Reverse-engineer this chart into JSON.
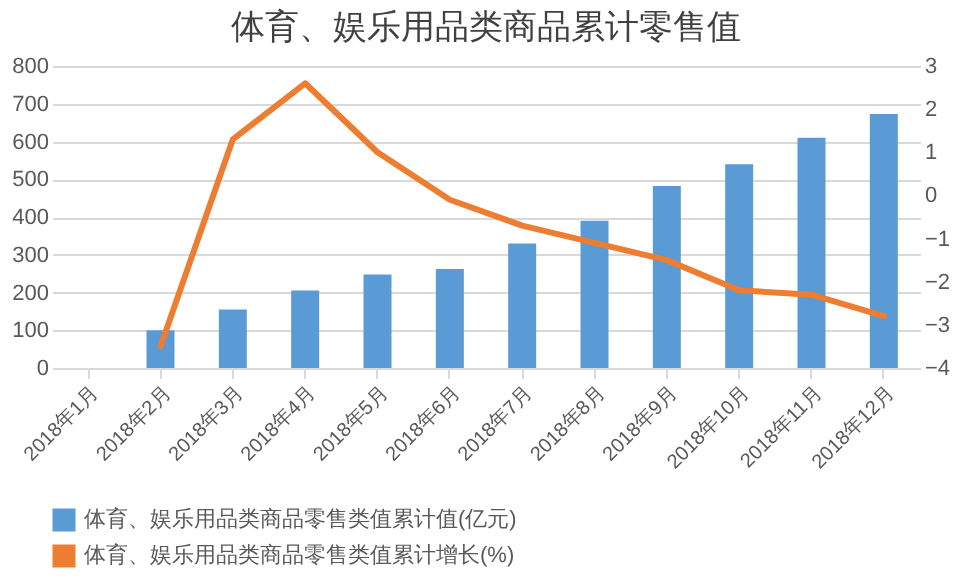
{
  "chart_data": {
    "type": "bar",
    "title": "体育、娱乐用品类商品累计零售值",
    "categories": [
      "2018年1月",
      "2018年2月",
      "2018年3月",
      "2018年4月",
      "2018年5月",
      "2018年6月",
      "2018年7月",
      "2018年8月",
      "2018年9月",
      "2018年10月",
      "2018年11月",
      "2018年12月"
    ],
    "series": [
      {
        "name": "体育、娱乐用品类商品零售类值累计值(亿元)",
        "color": "#5b9bd5",
        "values": [
          null,
          100,
          155,
          205,
          248,
          262,
          330,
          390,
          482,
          540,
          610,
          673
        ]
      },
      {
        "name": "体育、娱乐用品类商品零售类值累计增长(%)",
        "type": "line",
        "axis": "y2",
        "color": "#ed7d31",
        "values": [
          null,
          -3.5,
          1.3,
          2.6,
          1.0,
          -0.1,
          -0.7,
          -1.1,
          -1.5,
          -2.2,
          -2.3,
          -2.8
        ]
      }
    ],
    "ylim": [
      0,
      800
    ],
    "yticks": [
      0,
      100,
      200,
      300,
      400,
      500,
      600,
      700,
      800
    ],
    "y2lim": [
      -4,
      3
    ],
    "y2ticks": [
      -4,
      -3,
      -2,
      -1,
      0,
      1,
      2,
      3
    ],
    "grid": "y",
    "legend": "bottom"
  }
}
